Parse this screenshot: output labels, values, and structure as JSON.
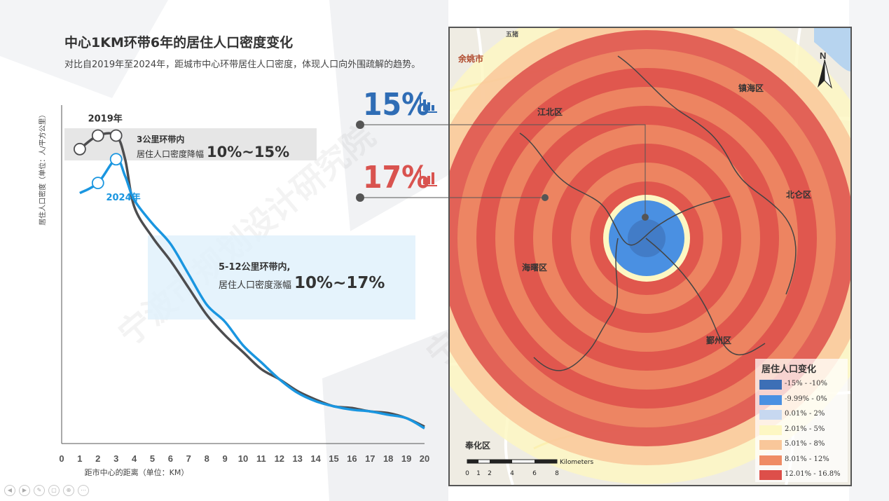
{
  "header": {
    "title": "中心1KM环带6年的居住人口密度变化",
    "subtitle": "对比自2019年至2024年，距城市中心环带居住人口密度，体现人口向外围疏解的趋势。"
  },
  "chart_data": {
    "type": "line",
    "xlabel": "距市中心的距离（单位：KM）",
    "ylabel": "居住人口密度（单位：人/平方公里）",
    "x_ticks": [
      "0",
      "1",
      "2",
      "3",
      "4",
      "5",
      "6",
      "7",
      "8",
      "9",
      "10",
      "11",
      "12",
      "13",
      "14",
      "15",
      "16",
      "17",
      "18",
      "19",
      "20"
    ],
    "xlim": [
      0,
      20
    ],
    "ylim": [
      0,
      100
    ],
    "grid": false,
    "series": [
      {
        "name": "2019年",
        "color": "#4d4d4f",
        "x": [
          1,
          2,
          3,
          3.5,
          4,
          5,
          6,
          7,
          8,
          9,
          10,
          11,
          12,
          13,
          14,
          15,
          16,
          17,
          18,
          19,
          20
        ],
        "values": [
          87,
          91,
          91,
          84,
          70,
          61,
          54,
          46,
          38,
          32,
          27,
          22,
          19,
          15.5,
          13,
          11,
          10.5,
          9.5,
          9,
          7.5,
          5
        ],
        "markers_at": [
          1,
          2,
          3
        ]
      },
      {
        "name": "2024年",
        "color": "#1a96e0",
        "x": [
          1,
          2,
          3,
          3.5,
          4,
          5,
          6,
          7,
          8,
          9,
          10,
          11,
          12,
          13,
          14,
          15,
          16,
          17,
          18,
          19,
          20
        ],
        "values": [
          74,
          77,
          84,
          79,
          72,
          65,
          59,
          50,
          41,
          36,
          29,
          24,
          19,
          15,
          12.5,
          11,
          10,
          9.5,
          8.5,
          7.5,
          4.5
        ],
        "markers_at": [
          2,
          3
        ]
      }
    ]
  },
  "annotations": {
    "gray_box_line1": "3公里环带内",
    "gray_box_line2": "居住人口密度降幅",
    "gray_box_value": "10%~15%",
    "blue_box_line1": "5-12公里环带内,",
    "blue_box_line2": "居住人口密度涨幅",
    "blue_box_value": "10%~17%"
  },
  "map": {
    "callout_top_value": "15%",
    "callout_top_color": "#2f6db5",
    "callout_bottom_value": "17%",
    "callout_bottom_color": "#d9534f",
    "north_label": "N",
    "scale_label": "Kilometers",
    "scale_ticks": [
      "0",
      "1",
      "2",
      "4",
      "6",
      "8"
    ],
    "place_labels": [
      "五猪",
      "余姚市",
      "镇海区",
      "江北区",
      "北仑区",
      "海曙区",
      "鄞州区",
      "奉化区",
      "Kilometers"
    ],
    "legend_title": "居住人口变化",
    "legend_items": [
      {
        "label": "-15% - -10%",
        "color": "#3d6fb6"
      },
      {
        "label": "-9.99% - 0%",
        "color": "#4a90e2"
      },
      {
        "label": "0.01% - 2%",
        "color": "#c7d8f0"
      },
      {
        "label": "2.01% - 5%",
        "color": "#fdf7c3"
      },
      {
        "label": "5.01% - 8%",
        "color": "#f9c79a"
      },
      {
        "label": "8.01% - 12%",
        "color": "#ef8c65"
      },
      {
        "label": "12.01% - 16.8%",
        "color": "#dd4f4a"
      }
    ]
  },
  "watermark": "宁波市规划设计研究院"
}
